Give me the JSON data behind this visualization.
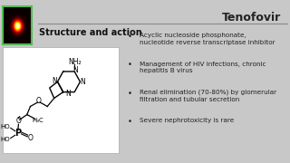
{
  "title": "Tenofovir",
  "section_label": "Structure and action",
  "bullet_points": [
    "Acyclic nucleoside phosphonate,\nnucleotide reverse transcriptase inhibitor",
    "Management of HIV infections, chronic\nhepatitis B virus",
    "Renal elimination (70-80%) by glomerular\nfiltration and tubular secretion",
    "Severe nephrotoxicity is rare"
  ],
  "bg_color": "#c8c8c8",
  "title_color": "#222222",
  "section_color": "#111111",
  "bullet_color": "#222222",
  "line_color": "#888888",
  "title_fontsize": 9,
  "section_fontsize": 7,
  "bullet_fontsize": 5.2,
  "struct_bg": "#ffffff"
}
